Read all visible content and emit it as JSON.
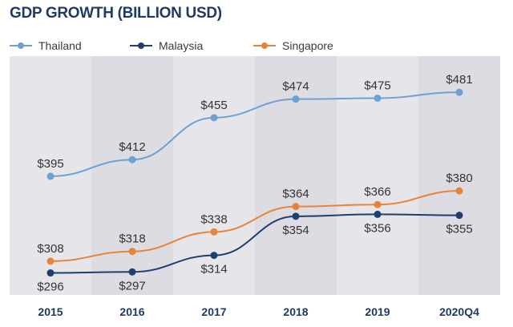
{
  "header": {
    "title": "GDP GROWTH (BILLION USD)"
  },
  "chart_data": {
    "type": "line",
    "title": "GDP GROWTH (BILLION USD)",
    "categories": [
      "2015",
      "2016",
      "2017",
      "2018",
      "2019",
      "2020Q4"
    ],
    "series": [
      {
        "name": "Thailand",
        "values": [
          395,
          412,
          455,
          474,
          475,
          481
        ],
        "labels": [
          "$395",
          "$412",
          "$455",
          "$474",
          "$475",
          "$481"
        ],
        "color": "#6fa0d2",
        "label_position": "above"
      },
      {
        "name": "Malaysia",
        "values": [
          296,
          297,
          314,
          354,
          356,
          355
        ],
        "labels": [
          "$296",
          "$297",
          "$314",
          "$354",
          "$356",
          "$355"
        ],
        "color": "#1f3f6e",
        "label_position": "below"
      },
      {
        "name": "Singapore",
        "values": [
          308,
          318,
          338,
          364,
          366,
          380
        ],
        "labels": [
          "$308",
          "$318",
          "$338",
          "$364",
          "$366",
          "$380"
        ],
        "color": "#e8843a",
        "label_position": "above"
      }
    ],
    "ylim": [
      280,
      500
    ],
    "legend": "top-left",
    "grid": "alternating column bands",
    "background_band_colors": [
      "#e6e6ea",
      "#dcdce2"
    ]
  }
}
